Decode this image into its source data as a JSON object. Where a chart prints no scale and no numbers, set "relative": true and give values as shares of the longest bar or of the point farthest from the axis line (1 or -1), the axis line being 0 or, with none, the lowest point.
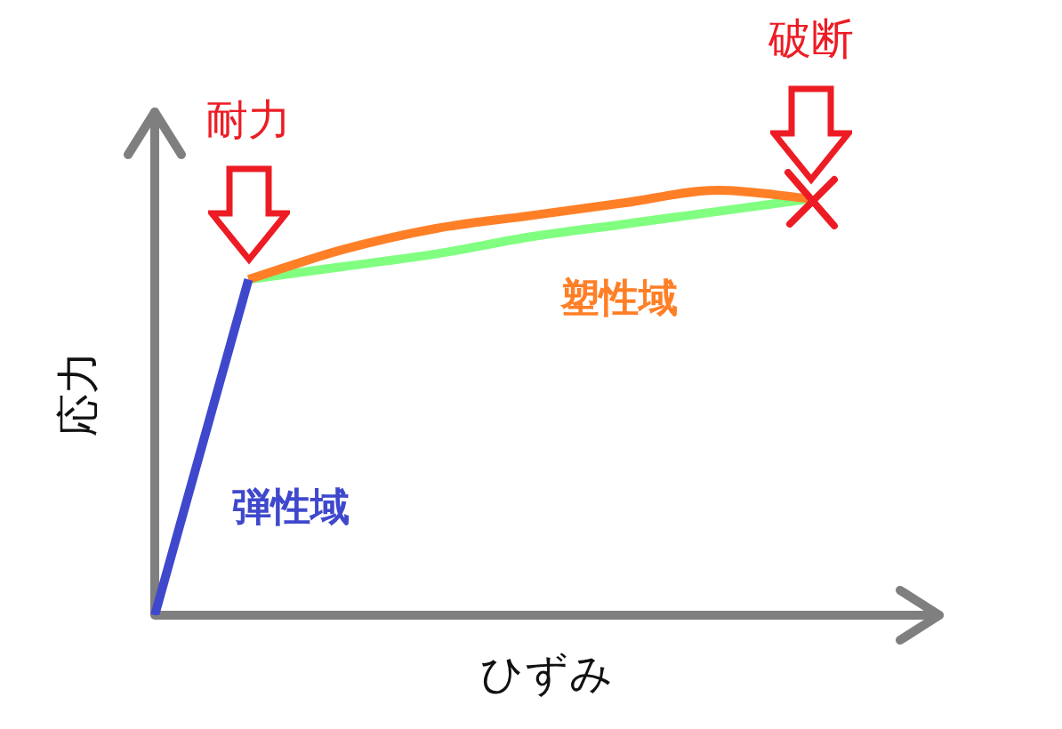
{
  "chart_data": {
    "type": "line",
    "relative": true,
    "xlabel": "ひずみ",
    "ylabel": "応力",
    "annotations": [
      "耐力",
      "破断"
    ],
    "categories": [
      null,
      null,
      null,
      null,
      null,
      null,
      null,
      null
    ],
    "series": [
      {
        "name": "弾性域",
        "color": "#3f48cc",
        "values": [
          0,
          0.79,
          null,
          null,
          null,
          null,
          null,
          null
        ]
      },
      {
        "name": "塑性域",
        "color": "#ff7f27",
        "values": [
          null,
          0.79,
          0.86,
          0.91,
          0.94,
          0.97,
          1,
          0.98
        ]
      },
      {
        "color": "#80ff80",
        "values": [
          null,
          0.79,
          0.82,
          0.85,
          0.89,
          0.92,
          0.95,
          0.98
        ]
      }
    ]
  }
}
